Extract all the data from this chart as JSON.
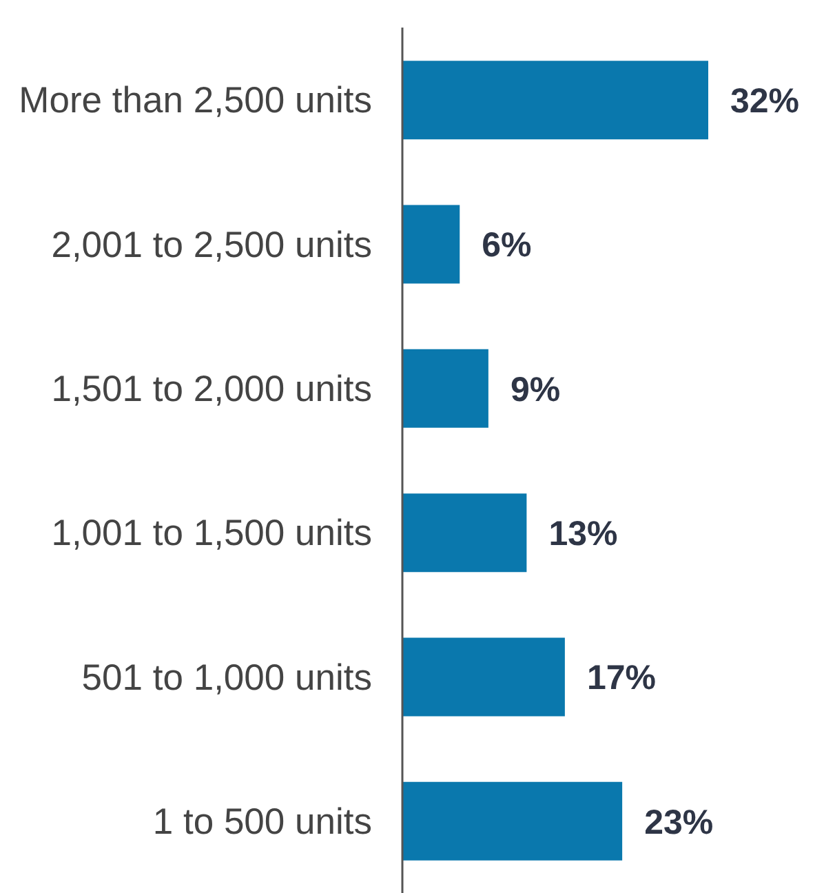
{
  "chart_data": {
    "type": "bar",
    "orientation": "horizontal",
    "categories": [
      "More than 2,500 units",
      "2,001 to 2,500 units",
      "1,501 to 2,000 units",
      "1,001 to 1,500 units",
      "501 to 1,000 units",
      "1 to 500 units"
    ],
    "values": [
      32,
      6,
      9,
      13,
      17,
      23
    ],
    "value_labels": [
      "32%",
      "6%",
      "9%",
      "13%",
      "17%",
      "23%"
    ],
    "color": "#0a78ad",
    "tick_labels": "y"
  }
}
